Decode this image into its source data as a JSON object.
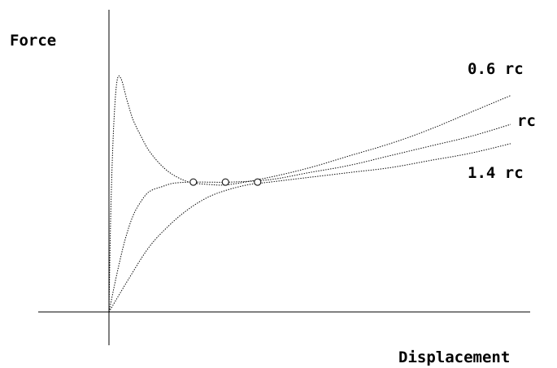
{
  "chart_data": {
    "type": "line",
    "title": "",
    "xlabel": "Displacement",
    "ylabel": "Force",
    "xlim": [
      0,
      1
    ],
    "ylim": [
      0,
      1
    ],
    "grid": false,
    "legend": "none",
    "series": [
      {
        "name": "0.6 rc",
        "x": [
          0,
          0.005,
          0.012,
          0.02,
          0.03,
          0.045,
          0.06,
          0.08,
          0.1,
          0.13,
          0.16,
          0.2,
          0.25,
          0.3,
          0.4,
          0.5,
          0.6,
          0.7,
          0.8,
          0.9,
          1.0
        ],
        "y": [
          0,
          0.45,
          0.78,
          0.96,
          0.97,
          0.88,
          0.8,
          0.73,
          0.67,
          0.61,
          0.57,
          0.54,
          0.53,
          0.53,
          0.56,
          0.6,
          0.65,
          0.7,
          0.76,
          0.83,
          0.9
        ]
      },
      {
        "name": "rc",
        "x": [
          0,
          0.02,
          0.04,
          0.06,
          0.08,
          0.1,
          0.13,
          0.16,
          0.2,
          0.25,
          0.3,
          0.4,
          0.5,
          0.6,
          0.7,
          0.8,
          0.9,
          1.0
        ],
        "y": [
          0,
          0.16,
          0.3,
          0.4,
          0.46,
          0.5,
          0.52,
          0.535,
          0.54,
          0.54,
          0.54,
          0.55,
          0.58,
          0.61,
          0.65,
          0.69,
          0.73,
          0.78
        ]
      },
      {
        "name": "1.4 rc",
        "x": [
          0,
          0.05,
          0.1,
          0.15,
          0.2,
          0.25,
          0.3,
          0.35,
          0.4,
          0.5,
          0.6,
          0.7,
          0.8,
          0.9,
          1.0
        ],
        "y": [
          0,
          0.14,
          0.27,
          0.36,
          0.43,
          0.48,
          0.51,
          0.53,
          0.54,
          0.56,
          0.58,
          0.6,
          0.63,
          0.66,
          0.7
        ]
      }
    ],
    "markers": [
      {
        "x": 0.21,
        "y": 0.54
      },
      {
        "x": 0.29,
        "y": 0.54
      },
      {
        "x": 0.37,
        "y": 0.54
      }
    ]
  }
}
